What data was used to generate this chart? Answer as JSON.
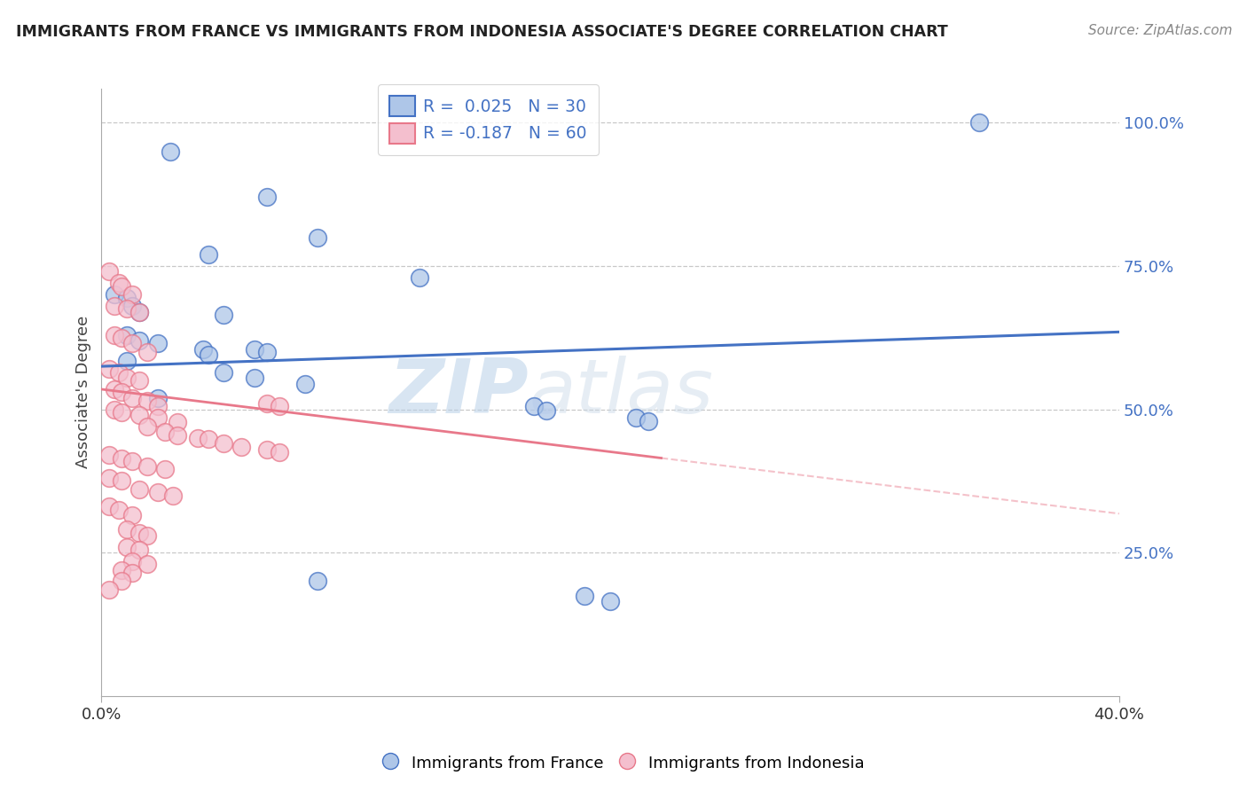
{
  "title": "IMMIGRANTS FROM FRANCE VS IMMIGRANTS FROM INDONESIA ASSOCIATE'S DEGREE CORRELATION CHART",
  "source": "Source: ZipAtlas.com",
  "ylabel": "Associate's Degree",
  "xlim": [
    0.0,
    0.4
  ],
  "ylim": [
    0.0,
    1.06
  ],
  "ytick_vals": [
    0.25,
    0.5,
    0.75,
    1.0
  ],
  "ytick_labels": [
    "25.0%",
    "50.0%",
    "75.0%",
    "100.0%"
  ],
  "legend_france": "R =  0.025   N = 30",
  "legend_indonesia": "R = -0.187   N = 60",
  "france_color": "#aec6e8",
  "indonesia_color": "#f4bfce",
  "france_line_color": "#4472c4",
  "indonesia_line_color": "#e8788a",
  "france_line": {
    "x0": 0.0,
    "y0": 0.575,
    "x1": 0.4,
    "y1": 0.635
  },
  "indonesia_line_solid": {
    "x0": 0.0,
    "y0": 0.535,
    "x1": 0.22,
    "y1": 0.415
  },
  "indonesia_line_dash": {
    "x0": 0.22,
    "y0": 0.415,
    "x1": 0.4,
    "y1": 0.318
  },
  "france_scatter": [
    [
      0.027,
      0.95
    ],
    [
      0.065,
      0.87
    ],
    [
      0.085,
      0.8
    ],
    [
      0.042,
      0.77
    ],
    [
      0.125,
      0.73
    ],
    [
      0.005,
      0.7
    ],
    [
      0.01,
      0.695
    ],
    [
      0.012,
      0.68
    ],
    [
      0.015,
      0.67
    ],
    [
      0.048,
      0.665
    ],
    [
      0.01,
      0.63
    ],
    [
      0.015,
      0.62
    ],
    [
      0.022,
      0.615
    ],
    [
      0.04,
      0.605
    ],
    [
      0.06,
      0.605
    ],
    [
      0.065,
      0.6
    ],
    [
      0.042,
      0.595
    ],
    [
      0.01,
      0.585
    ],
    [
      0.048,
      0.565
    ],
    [
      0.06,
      0.555
    ],
    [
      0.08,
      0.545
    ],
    [
      0.022,
      0.52
    ],
    [
      0.17,
      0.505
    ],
    [
      0.175,
      0.498
    ],
    [
      0.21,
      0.485
    ],
    [
      0.215,
      0.48
    ],
    [
      0.085,
      0.2
    ],
    [
      0.19,
      0.175
    ],
    [
      0.2,
      0.165
    ],
    [
      0.345,
      1.0
    ]
  ],
  "indonesia_scatter": [
    [
      0.003,
      0.74
    ],
    [
      0.007,
      0.72
    ],
    [
      0.008,
      0.715
    ],
    [
      0.012,
      0.7
    ],
    [
      0.005,
      0.68
    ],
    [
      0.01,
      0.675
    ],
    [
      0.015,
      0.67
    ],
    [
      0.005,
      0.63
    ],
    [
      0.008,
      0.625
    ],
    [
      0.012,
      0.615
    ],
    [
      0.018,
      0.6
    ],
    [
      0.003,
      0.57
    ],
    [
      0.007,
      0.565
    ],
    [
      0.01,
      0.555
    ],
    [
      0.015,
      0.55
    ],
    [
      0.005,
      0.535
    ],
    [
      0.008,
      0.53
    ],
    [
      0.012,
      0.52
    ],
    [
      0.018,
      0.515
    ],
    [
      0.022,
      0.505
    ],
    [
      0.005,
      0.5
    ],
    [
      0.008,
      0.495
    ],
    [
      0.015,
      0.49
    ],
    [
      0.022,
      0.485
    ],
    [
      0.03,
      0.478
    ],
    [
      0.018,
      0.47
    ],
    [
      0.025,
      0.46
    ],
    [
      0.03,
      0.455
    ],
    [
      0.038,
      0.45
    ],
    [
      0.042,
      0.448
    ],
    [
      0.048,
      0.44
    ],
    [
      0.055,
      0.435
    ],
    [
      0.065,
      0.43
    ],
    [
      0.07,
      0.425
    ],
    [
      0.003,
      0.42
    ],
    [
      0.008,
      0.415
    ],
    [
      0.012,
      0.41
    ],
    [
      0.018,
      0.4
    ],
    [
      0.025,
      0.395
    ],
    [
      0.065,
      0.51
    ],
    [
      0.07,
      0.505
    ],
    [
      0.003,
      0.38
    ],
    [
      0.008,
      0.375
    ],
    [
      0.015,
      0.36
    ],
    [
      0.022,
      0.355
    ],
    [
      0.028,
      0.35
    ],
    [
      0.003,
      0.33
    ],
    [
      0.007,
      0.325
    ],
    [
      0.012,
      0.315
    ],
    [
      0.01,
      0.29
    ],
    [
      0.015,
      0.285
    ],
    [
      0.018,
      0.28
    ],
    [
      0.01,
      0.26
    ],
    [
      0.015,
      0.255
    ],
    [
      0.012,
      0.235
    ],
    [
      0.018,
      0.23
    ],
    [
      0.008,
      0.22
    ],
    [
      0.012,
      0.215
    ],
    [
      0.008,
      0.2
    ],
    [
      0.003,
      0.185
    ]
  ],
  "watermark_zip": "ZIP",
  "watermark_atlas": "atlas",
  "background_color": "#ffffff",
  "grid_color": "#c8c8c8"
}
